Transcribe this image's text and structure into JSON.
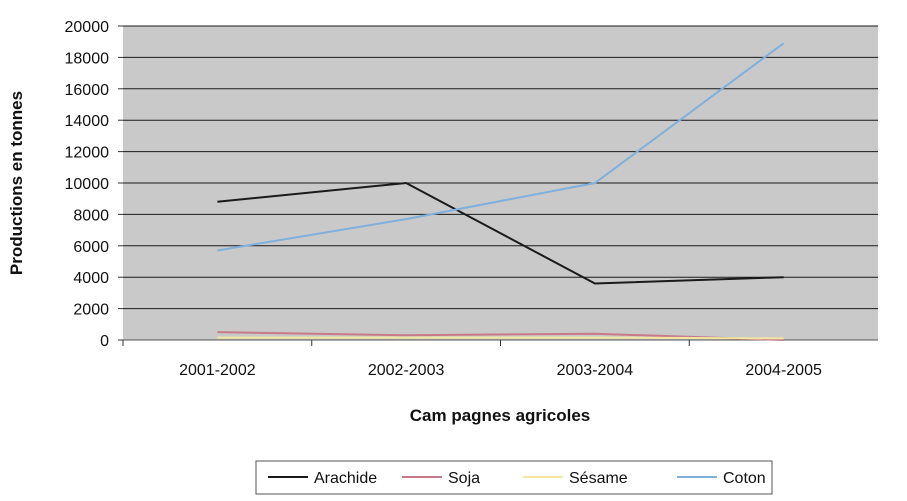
{
  "chart_data": {
    "type": "line",
    "title": "",
    "xlabel": "Cam pagnes agricoles",
    "ylabel": "Productions en tonnes",
    "categories": [
      "2001-2002",
      "2002-2003",
      "2003-2004",
      "2004-2005"
    ],
    "ylim": [
      0,
      20000
    ],
    "yticks": [
      0,
      2000,
      4000,
      6000,
      8000,
      10000,
      12000,
      14000,
      16000,
      18000,
      20000
    ],
    "grid": true,
    "legend_position": "bottom",
    "series": [
      {
        "name": "Arachide",
        "color": "#1a1a1a",
        "values": [
          8800,
          10000,
          3600,
          4000
        ]
      },
      {
        "name": "Soja",
        "color": "#c87a8a",
        "values": [
          500,
          300,
          400,
          0
        ]
      },
      {
        "name": "Sésame",
        "color": "#f2e6a0",
        "values": [
          150,
          150,
          150,
          100
        ]
      },
      {
        "name": "Coton",
        "color": "#7fb0dc",
        "values": [
          5700,
          7700,
          10000,
          18900
        ]
      }
    ],
    "colors": {
      "plot_background": "#c9c9c9",
      "gridline": "#1a1a1a"
    }
  }
}
